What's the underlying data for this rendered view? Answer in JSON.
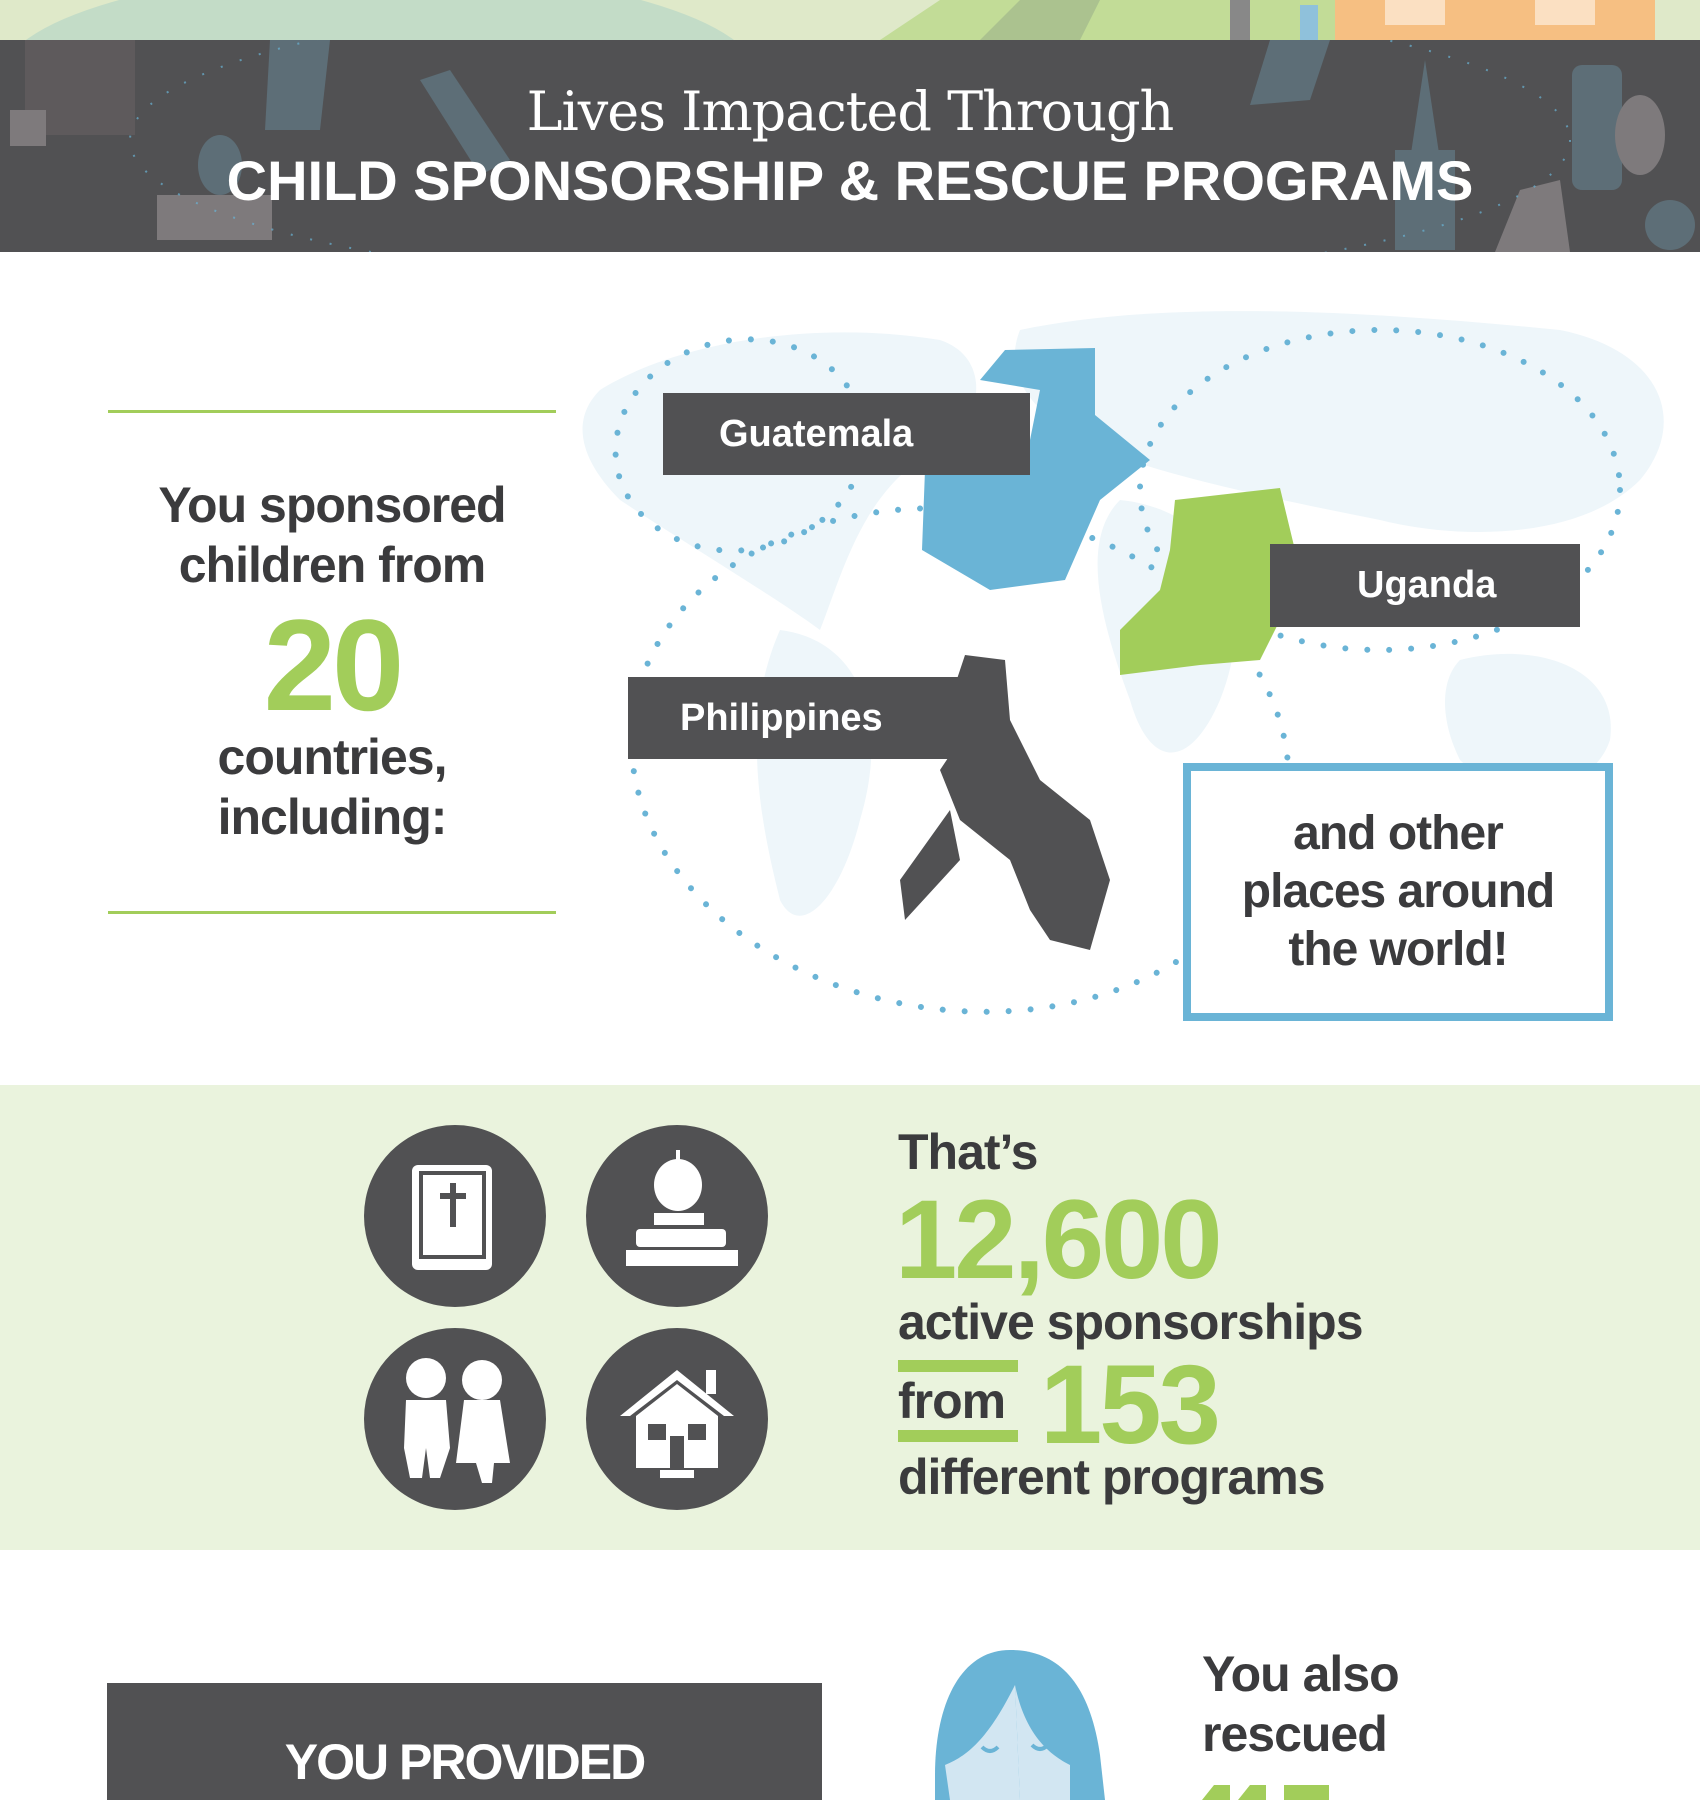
{
  "header": {
    "title_line1": "Lives Impacted Through",
    "title_line2": "CHILD SPONSORSHIP & RESCUE PROGRAMS"
  },
  "countries_section": {
    "line1": "You sponsored",
    "line2": "children from",
    "count": "20",
    "line3": "countries,",
    "line4": "including:",
    "labels": [
      "Guatemala",
      "Uganda",
      "Philippines"
    ],
    "other_places": "and other places around the world!"
  },
  "sponsorship_section": {
    "icons": [
      "bible-icon",
      "apple-books-icon",
      "children-icon",
      "house-icon"
    ],
    "thats": "That’s",
    "sponsorships": "12,600",
    "sponsorships_label": "active sponsorships",
    "from": "from",
    "programs": "153",
    "programs_label": "different programs"
  },
  "bottom": {
    "provided": "YOU PROVIDED",
    "rescued_line1": "You also",
    "rescued_line2": "rescued"
  },
  "colors": {
    "dark": "#515153",
    "green": "#a2cd5a",
    "blue": "#6ab4d6",
    "light_green": "#eaf3dd",
    "map": "#eef6fa"
  }
}
